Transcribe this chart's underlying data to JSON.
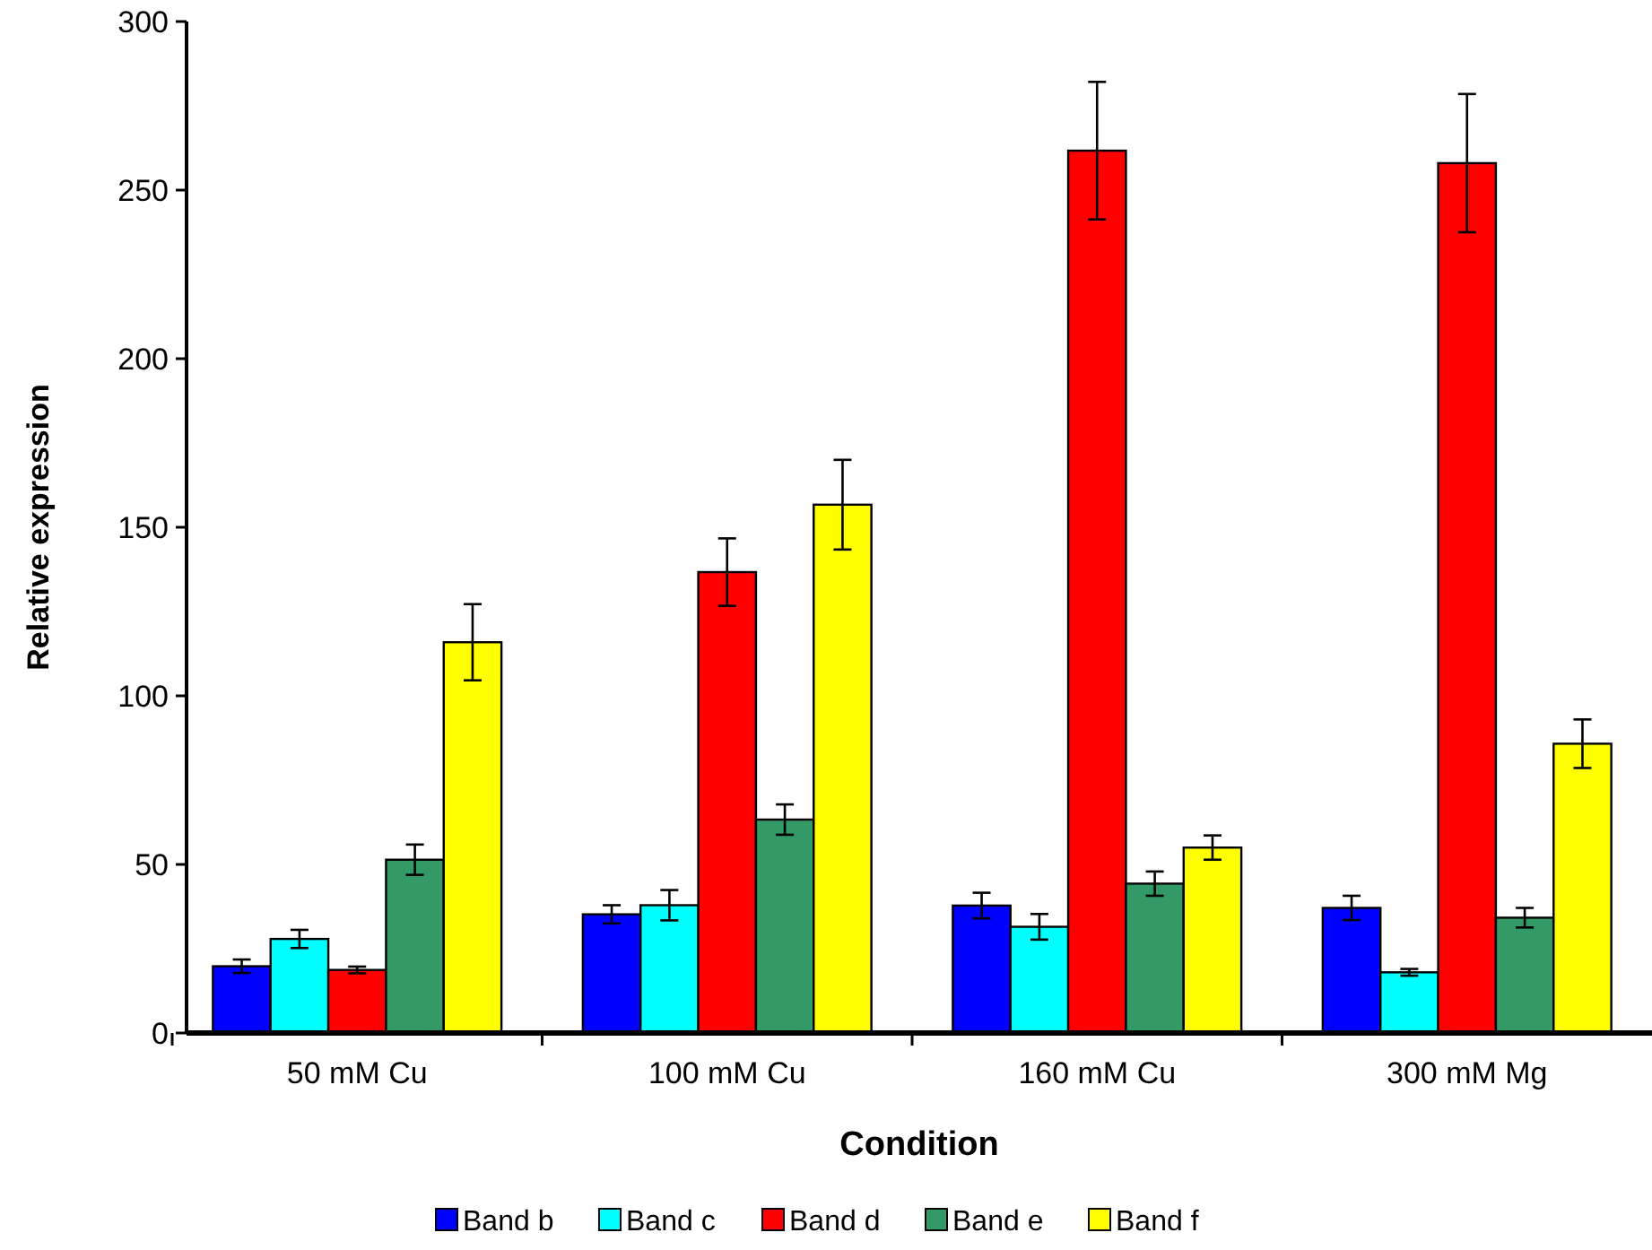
{
  "chart_data": {
    "type": "bar",
    "xlabel": "Condition",
    "ylabel": "Relative expression",
    "categories": [
      "50 mM Cu",
      "100 mM Cu",
      "160 mM Cu",
      "300 mM Mg"
    ],
    "ylim": [
      0,
      300
    ],
    "yticks": [
      0,
      50,
      100,
      150,
      200,
      250,
      300
    ],
    "grid": false,
    "legend": "bottom",
    "series": [
      {
        "name": "Band b",
        "color": "#0000ff",
        "values": [
          19.8,
          35.2,
          37.8,
          37.1
        ],
        "errors": [
          2,
          2.7,
          3.8,
          3.6
        ]
      },
      {
        "name": "Band c",
        "color": "#00ffff",
        "values": [
          27.9,
          37.9,
          31.5,
          18
        ],
        "errors": [
          2.7,
          4.5,
          3.8,
          1
        ]
      },
      {
        "name": "Band d",
        "color": "#ff0000",
        "values": [
          18.7,
          136.7,
          261.7,
          258
        ],
        "errors": [
          1,
          10,
          20.4,
          20.5
        ]
      },
      {
        "name": "Band e",
        "color": "#339966",
        "values": [
          51.4,
          63.3,
          44.3,
          34.2
        ],
        "errors": [
          4.5,
          4.5,
          3.6,
          2.9
        ]
      },
      {
        "name": "Band f",
        "color": "#ffff00",
        "values": [
          115.9,
          156.7,
          55,
          85.8
        ],
        "errors": [
          11.3,
          13.3,
          3.6,
          7.2
        ]
      }
    ]
  }
}
